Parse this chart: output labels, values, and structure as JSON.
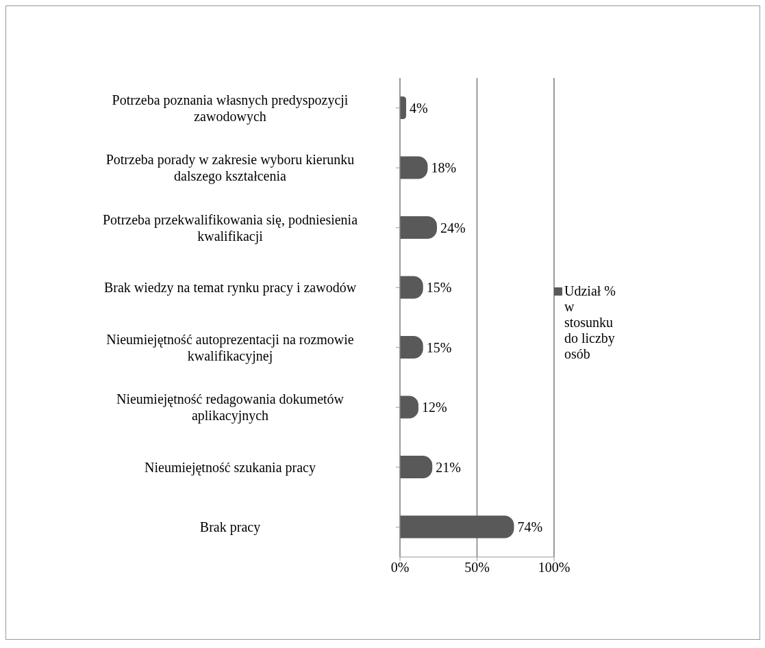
{
  "chart_data": {
    "type": "bar",
    "orientation": "horizontal",
    "categories": [
      "Potrzeba poznania własnych predyspozycji zawodowych",
      "Potrzeba porady w zakresie wyboru kierunku dalszego kształcenia",
      "Potrzeba przekwalifikowania się, podniesienia kwalifikacji",
      "Brak wiedzy na temat rynku pracy i zawodów",
      "Nieumiejętność autoprezentacji na rozmowie kwalifikacyjnej",
      "Nieumiejętność redagowania dokumetów aplikacyjnych",
      "Nieumiejętność szukania pracy",
      "Brak pracy"
    ],
    "series": [
      {
        "name": "Udział % w stosunku do liczby osób",
        "color": "#595959",
        "values": [
          4,
          18,
          24,
          15,
          15,
          12,
          21,
          74
        ],
        "value_labels": [
          "4%",
          "18%",
          "24%",
          "15%",
          "15%",
          "12%",
          "21%",
          "74%"
        ]
      }
    ],
    "xlim": [
      0,
      100
    ],
    "xticks": [
      {
        "value": 0,
        "label": "0%"
      },
      {
        "value": 50,
        "label": "50%"
      },
      {
        "value": 100,
        "label": "100%"
      }
    ],
    "grid": "x",
    "legend": "right"
  }
}
